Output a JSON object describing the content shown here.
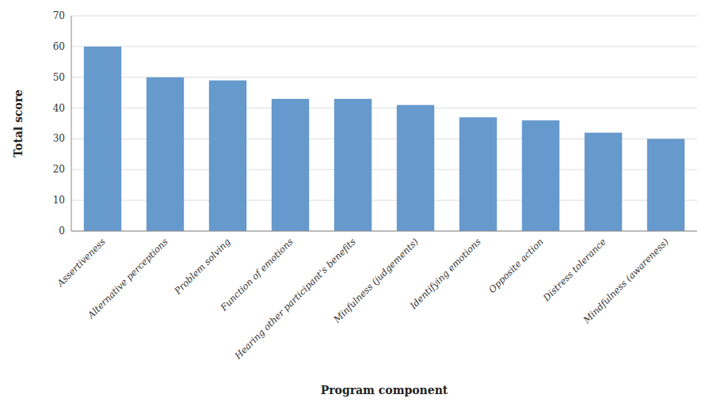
{
  "chart_data": {
    "type": "bar",
    "categories": [
      "Assertiveness",
      "Alternative perceptions",
      "Problem solving",
      "Function of emotions",
      "Hearing other participant's benefits",
      "Minfulness (judgements)",
      "Identifying emotions",
      "Opposite action",
      "Distress tolerance",
      "Mindfulness (awareness)"
    ],
    "values": [
      60,
      50,
      49,
      43,
      43,
      41,
      37,
      36,
      32,
      30
    ],
    "color": "#6699CC",
    "xlabel": "Program component",
    "ylabel": "Total score",
    "ylim": [
      0,
      70
    ],
    "yticks": [
      0,
      10,
      20,
      30,
      40,
      50,
      60,
      70
    ],
    "grid": true
  }
}
